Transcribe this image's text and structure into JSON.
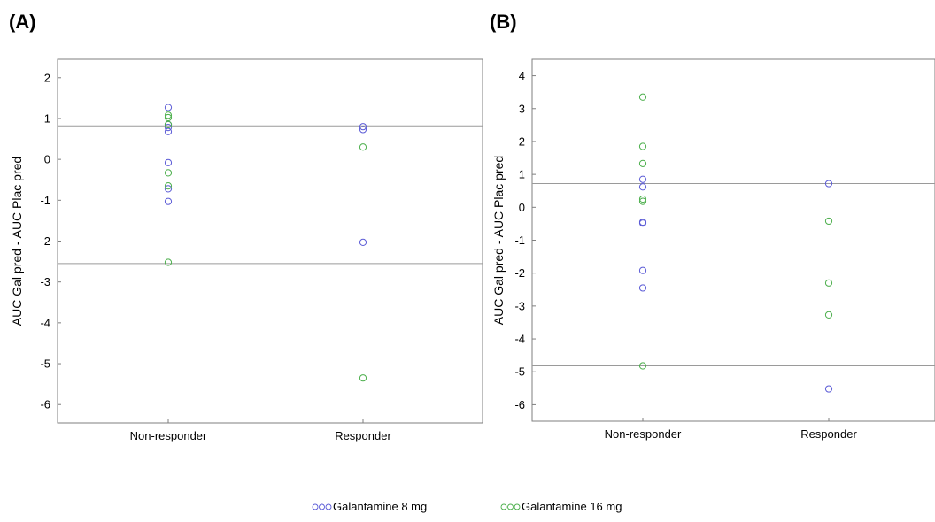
{
  "chart_data": [
    {
      "type": "scatter",
      "panel_label": "(A)",
      "ylabel": "AUC Gal pred - AUC Plac pred",
      "categories": [
        "Non-responder",
        "Responder"
      ],
      "ylim": [
        -6.45,
        2.45
      ],
      "yticks": [
        2,
        1,
        0,
        -1,
        -2,
        -3,
        -4,
        -5,
        -6
      ],
      "grid": false,
      "reference_lines": [
        0.82,
        -2.55
      ],
      "series": [
        {
          "name": "Galantamine 8 mg",
          "color": "#5b5bd6",
          "points": [
            [
              "Non-responder",
              1.27
            ],
            [
              "Non-responder",
              0.85
            ],
            [
              "Non-responder",
              0.78
            ],
            [
              "Non-responder",
              0.68
            ],
            [
              "Non-responder",
              -0.08
            ],
            [
              "Non-responder",
              -0.72
            ],
            [
              "Non-responder",
              -1.03
            ],
            [
              "Responder",
              0.8
            ],
            [
              "Responder",
              0.73
            ],
            [
              "Responder",
              -2.03
            ]
          ]
        },
        {
          "name": "Galantamine 16 mg",
          "color": "#4caf4c",
          "points": [
            [
              "Non-responder",
              1.08
            ],
            [
              "Non-responder",
              1.02
            ],
            [
              "Non-responder",
              0.85
            ],
            [
              "Non-responder",
              -0.33
            ],
            [
              "Non-responder",
              -0.65
            ],
            [
              "Non-responder",
              -2.52
            ],
            [
              "Responder",
              0.3
            ],
            [
              "Responder",
              -5.35
            ]
          ]
        }
      ]
    },
    {
      "type": "scatter",
      "panel_label": "(B)",
      "ylabel": "AUC Gal pred - AUC Plac pred",
      "categories": [
        "Non-responder",
        "Responder"
      ],
      "ylim": [
        -6.5,
        4.5
      ],
      "yticks": [
        4,
        3,
        2,
        1,
        0,
        -1,
        -2,
        -3,
        -4,
        -5,
        -6
      ],
      "grid": false,
      "reference_lines": [
        0.72,
        -4.82
      ],
      "series": [
        {
          "name": "Galantamine 8 mg",
          "color": "#5b5bd6",
          "points": [
            [
              "Non-responder",
              0.85
            ],
            [
              "Non-responder",
              0.62
            ],
            [
              "Non-responder",
              -0.45
            ],
            [
              "Non-responder",
              -0.48
            ],
            [
              "Non-responder",
              -1.92
            ],
            [
              "Non-responder",
              -2.45
            ],
            [
              "Responder",
              0.72
            ],
            [
              "Responder",
              -5.52
            ]
          ]
        },
        {
          "name": "Galantamine 16 mg",
          "color": "#4caf4c",
          "points": [
            [
              "Non-responder",
              3.35
            ],
            [
              "Non-responder",
              1.85
            ],
            [
              "Non-responder",
              1.33
            ],
            [
              "Non-responder",
              0.25
            ],
            [
              "Non-responder",
              0.18
            ],
            [
              "Non-responder",
              -4.82
            ],
            [
              "Responder",
              -0.42
            ],
            [
              "Responder",
              -2.3
            ],
            [
              "Responder",
              -3.27
            ]
          ]
        }
      ]
    }
  ],
  "legend": {
    "placement": "bottom-center",
    "items": [
      {
        "label": "Galantamine 8 mg",
        "color": "#5b5bd6",
        "marker": "○○○"
      },
      {
        "label": "Galantamine 16 mg",
        "color": "#4caf4c",
        "marker": "○○○"
      }
    ]
  }
}
